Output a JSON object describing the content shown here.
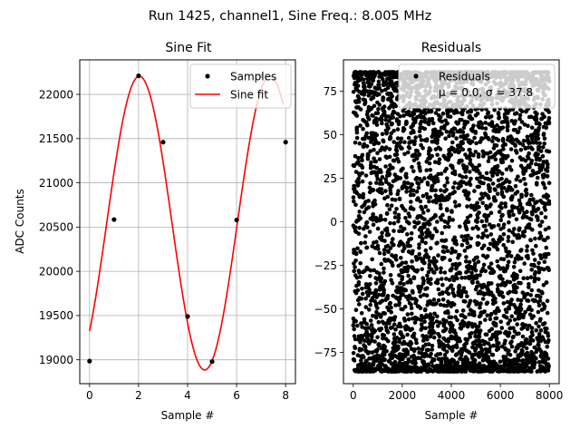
{
  "suptitle": "Run 1425, channel1, Sine Freq.: 8.005 MHz",
  "chart_data": [
    {
      "type": "line",
      "title": "Sine Fit",
      "xlabel": "Sample #",
      "ylabel": "ADC Counts",
      "xlim": [
        -0.4,
        8.4
      ],
      "ylim": [
        18730,
        22390
      ],
      "xticks": [
        0,
        2,
        4,
        6,
        8
      ],
      "yticks": [
        19000,
        19500,
        20000,
        20500,
        21000,
        21500,
        22000
      ],
      "xtick_labels": [
        "0",
        "2",
        "4",
        "6",
        "8"
      ],
      "ytick_labels": [
        "19000",
        "19500",
        "20000",
        "20500",
        "21000",
        "21500",
        "22000"
      ],
      "grid": true,
      "legend": "top-right",
      "series": [
        {
          "name": "Samples",
          "kind": "scatter",
          "color": "#000000",
          "x": [
            0,
            1,
            2,
            3,
            4,
            5,
            6,
            7,
            8
          ],
          "y": [
            18985,
            20585,
            22210,
            21460,
            19490,
            18980,
            20580,
            22210,
            21460
          ]
        },
        {
          "name": "Sine fit",
          "kind": "line",
          "color": "#ff0000",
          "model": {
            "offset": 20545,
            "amplitude": 1660,
            "period": 5.33,
            "phase_x": 0.7,
            "x_range": [
              0,
              7.9
            ]
          }
        }
      ]
    },
    {
      "type": "scatter",
      "title": "Residuals",
      "xlabel": "Sample #",
      "ylabel": "",
      "xlim": [
        -400,
        8400
      ],
      "ylim": [
        -93,
        93
      ],
      "xticks": [
        0,
        2000,
        4000,
        6000,
        8000
      ],
      "yticks": [
        -75,
        -50,
        -25,
        0,
        25,
        50,
        75
      ],
      "xtick_labels": [
        "0",
        "2000",
        "4000",
        "6000",
        "8000"
      ],
      "ytick_labels": [
        "−75",
        "−50",
        "−25",
        "0",
        "25",
        "50",
        "75"
      ],
      "grid": false,
      "legend": "top-right",
      "series": [
        {
          "name": "Residuals",
          "label_line2": "μ = 0.0, σ = 37.8",
          "color": "#000000",
          "distribution": {
            "count": 8000,
            "x_range": [
              0,
              8000
            ],
            "y_min": -86,
            "y_max": 86,
            "mu": 0.0,
            "sigma": 37.8
          }
        }
      ]
    }
  ]
}
